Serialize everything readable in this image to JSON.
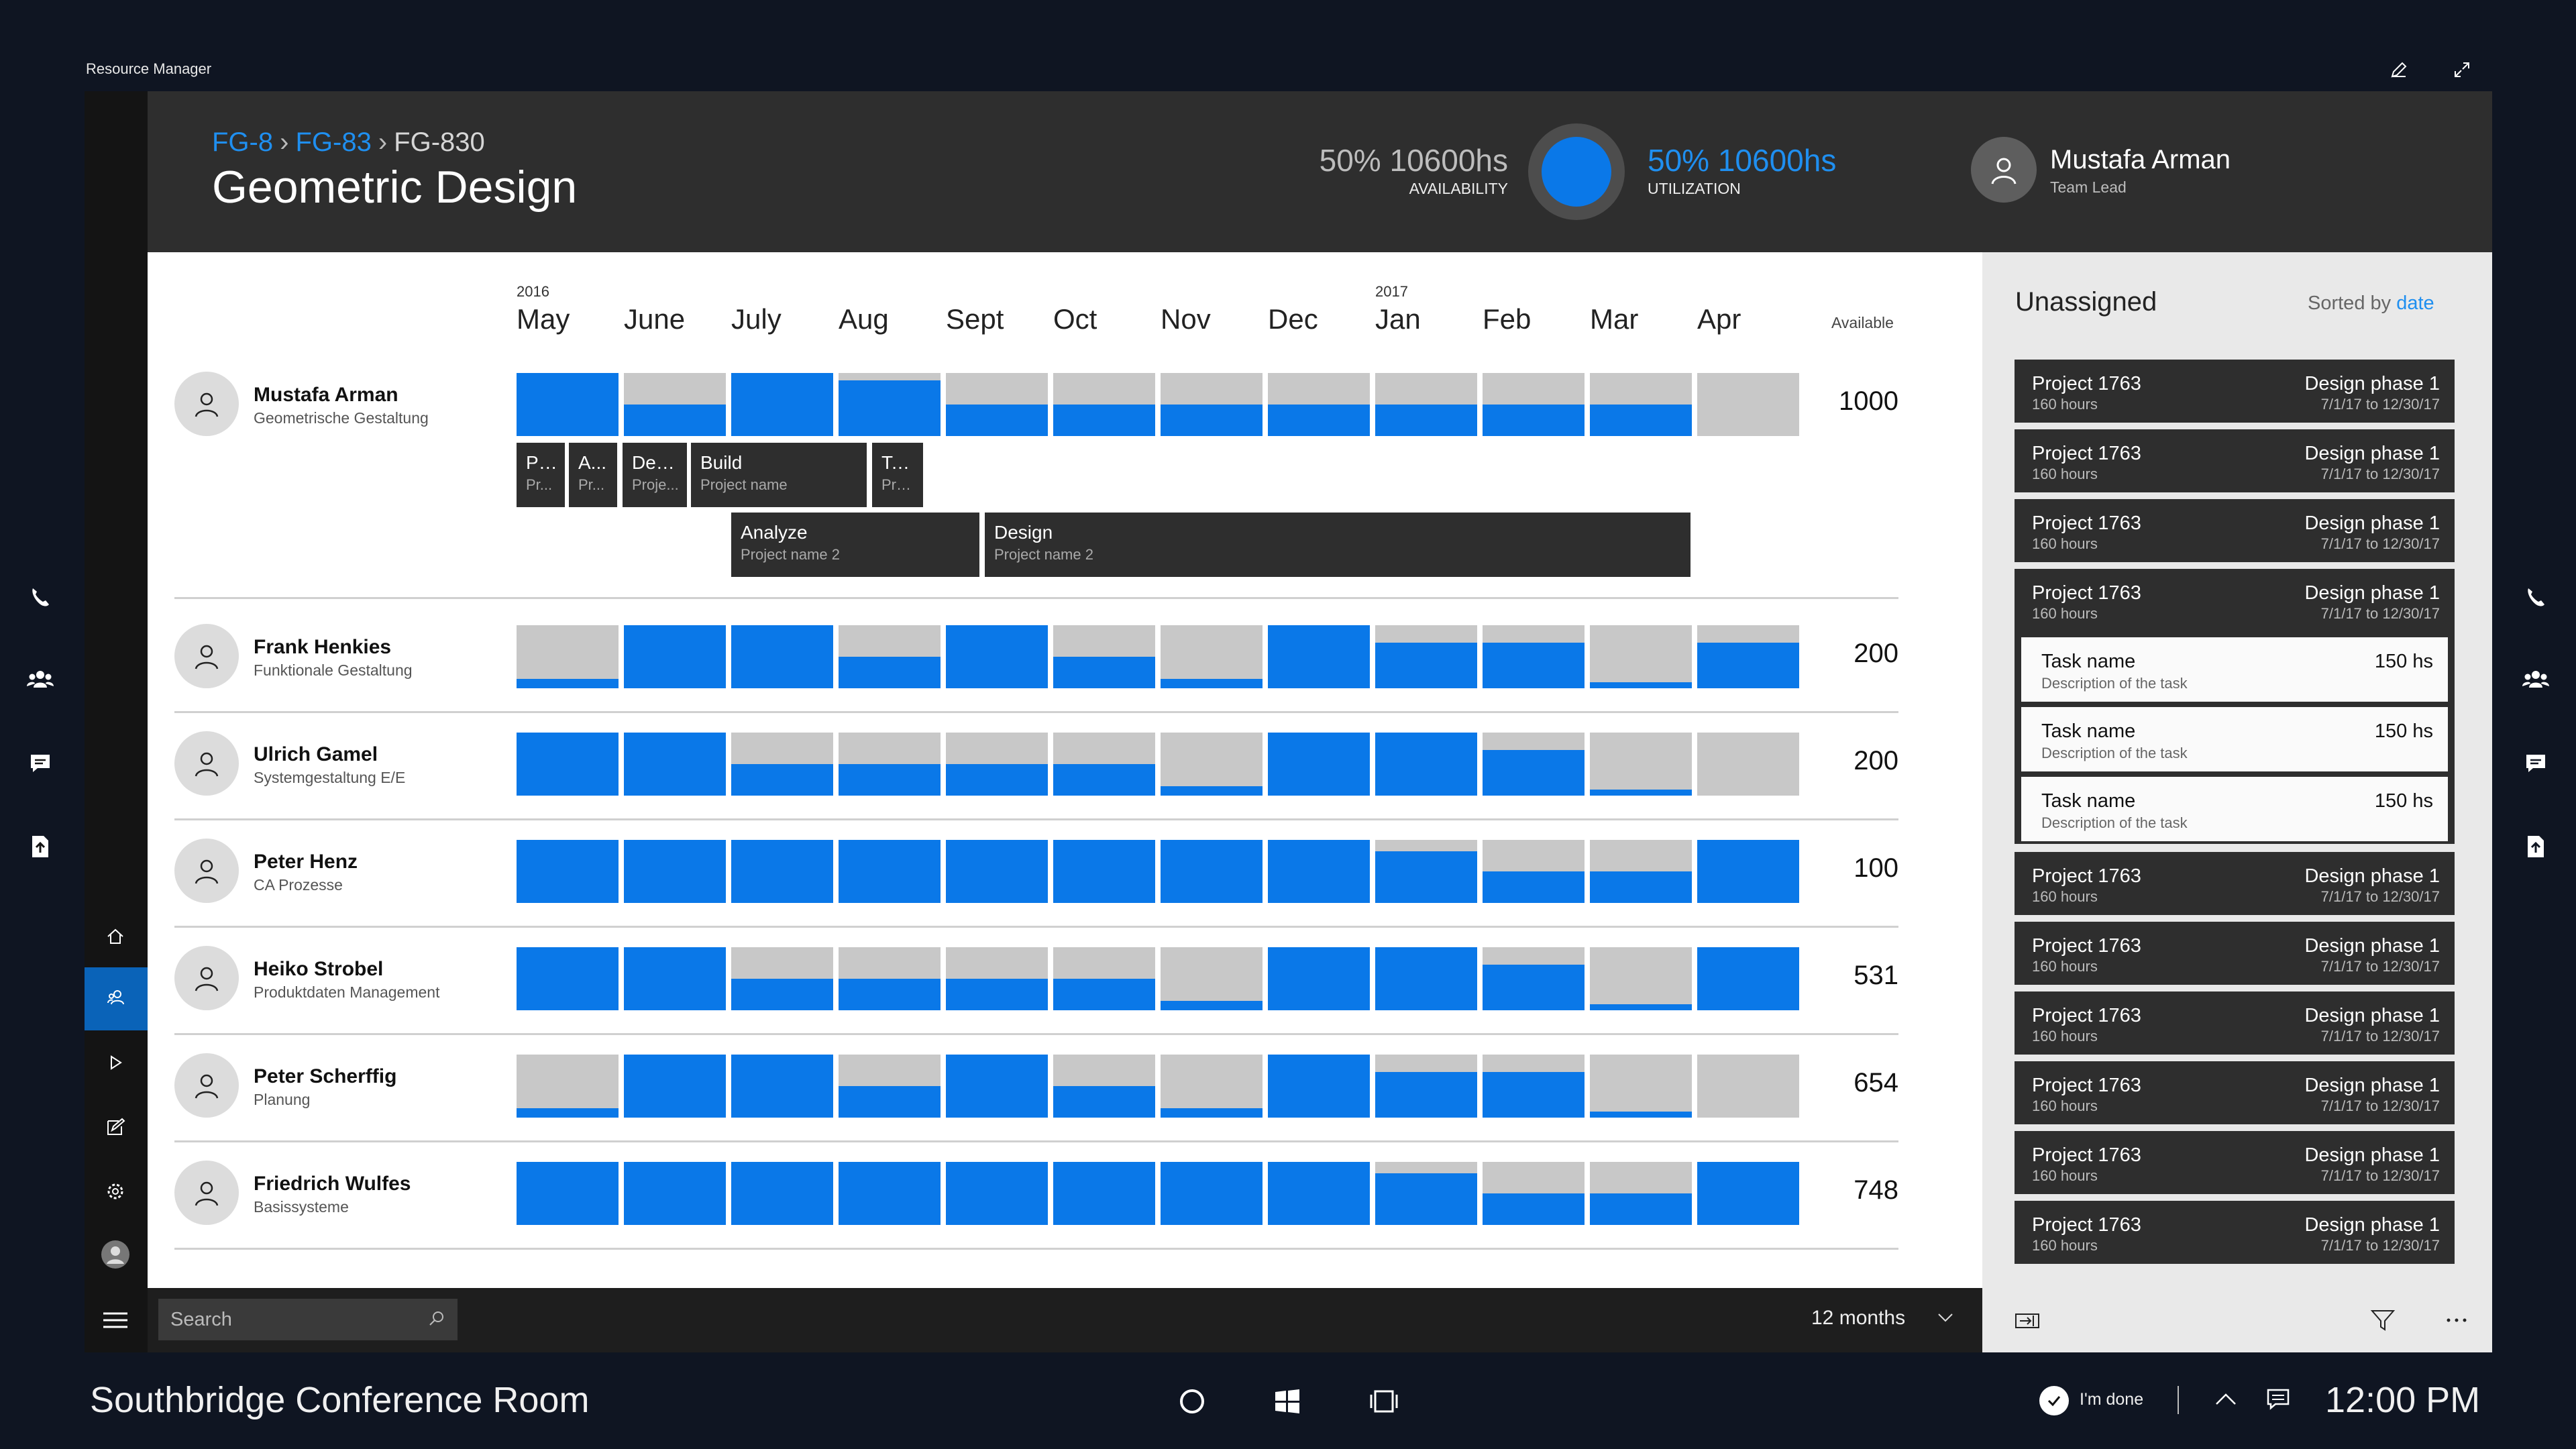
{
  "window": {
    "title": "Resource Manager"
  },
  "breadcrumb": {
    "l1": "FG-8",
    "l2": "FG-83",
    "current": "FG-830",
    "sep": "›"
  },
  "page_title": "Geometric Design",
  "stats": {
    "availability_value": "50% 10600hs",
    "availability_label": "AVAILABILITY",
    "utilization_value": "50% 10600hs",
    "utilization_label": "UTILIZATION"
  },
  "header_user": {
    "name": "Mustafa Arman",
    "role": "Team Lead"
  },
  "timeline": {
    "years": [
      {
        "label": "2016",
        "month_index": 0
      },
      {
        "label": "2017",
        "month_index": 8
      }
    ],
    "months": [
      "May",
      "June",
      "July",
      "Aug",
      "Sept",
      "Oct",
      "Nov",
      "Dec",
      "Jan",
      "Feb",
      "Mar",
      "Apr"
    ],
    "available_label": "Available"
  },
  "people": [
    {
      "name": "Mustafa Arman",
      "role": "Geometrische Gestaltung",
      "available": "1000",
      "fills": [
        1,
        0.5,
        1,
        0.88,
        0.5,
        0.5,
        0.5,
        0.5,
        0.5,
        0.5,
        0.5,
        0
      ]
    },
    {
      "name": "Frank Henkies",
      "role": "Funktionale Gestaltung",
      "available": "200",
      "fills": [
        0.15,
        1,
        1,
        0.5,
        1,
        0.5,
        0.15,
        1,
        0.72,
        0.72,
        0.1,
        0.72
      ]
    },
    {
      "name": "Ulrich Gamel",
      "role": "Systemgestaltung E/E",
      "available": "200",
      "fills": [
        1,
        1,
        0.5,
        0.5,
        0.5,
        0.5,
        0.15,
        1,
        1,
        0.72,
        0.1,
        0
      ]
    },
    {
      "name": "Peter Henz",
      "role": "CA Prozesse",
      "available": "100",
      "fills": [
        1,
        1,
        1,
        1,
        1,
        1,
        1,
        1,
        0.82,
        0.5,
        0.5,
        1
      ]
    },
    {
      "name": "Heiko Strobel",
      "role": "Produktdaten Management",
      "available": "531",
      "fills": [
        1,
        1,
        0.5,
        0.5,
        0.5,
        0.5,
        0.15,
        1,
        1,
        0.72,
        0.1,
        1
      ]
    },
    {
      "name": "Peter Scherffig",
      "role": "Planung",
      "available": "654",
      "fills": [
        0.15,
        1,
        1,
        0.5,
        1,
        0.5,
        0.15,
        1,
        0.72,
        0.72,
        0.1,
        0
      ]
    },
    {
      "name": "Friedrich Wulfes",
      "role": "Basissysteme",
      "available": "748",
      "fills": [
        1,
        1,
        1,
        1,
        1,
        1,
        1,
        1,
        0.82,
        0.5,
        0.5,
        1
      ]
    }
  ],
  "tasks": [
    {
      "name": "Pl...",
      "project": "Pr..."
    },
    {
      "name": "A...",
      "project": "Pr..."
    },
    {
      "name": "Des...",
      "project": "Proje..."
    },
    {
      "name": "Build",
      "project": "Project name"
    },
    {
      "name": "Te...",
      "project": "Pro..."
    },
    {
      "name": "Analyze",
      "project": "Project name 2"
    },
    {
      "name": "Design",
      "project": "Project name 2"
    }
  ],
  "unassigned": {
    "title": "Unassigned",
    "sort_label": "Sorted by",
    "sort_value": "date",
    "cards": [
      {
        "project": "Project 1763",
        "hours": "160 hours",
        "phase": "Design phase 1",
        "dates": "7/1/17 to 12/30/17"
      },
      {
        "project": "Project 1763",
        "hours": "160 hours",
        "phase": "Design phase 1",
        "dates": "7/1/17 to 12/30/17"
      },
      {
        "project": "Project 1763",
        "hours": "160 hours",
        "phase": "Design phase 1",
        "dates": "7/1/17 to 12/30/17"
      },
      {
        "project": "Project 1763",
        "hours": "160 hours",
        "phase": "Design phase 1",
        "dates": "7/1/17 to 12/30/17"
      },
      {
        "project": "Project 1763",
        "hours": "160 hours",
        "phase": "Design phase 1",
        "dates": "7/1/17 to 12/30/17"
      },
      {
        "project": "Project 1763",
        "hours": "160 hours",
        "phase": "Design phase 1",
        "dates": "7/1/17 to 12/30/17"
      },
      {
        "project": "Project 1763",
        "hours": "160 hours",
        "phase": "Design phase 1",
        "dates": "7/1/17 to 12/30/17"
      },
      {
        "project": "Project 1763",
        "hours": "160 hours",
        "phase": "Design phase 1",
        "dates": "7/1/17 to 12/30/17"
      },
      {
        "project": "Project 1763",
        "hours": "160 hours",
        "phase": "Design phase 1",
        "dates": "7/1/17 to 12/30/17"
      },
      {
        "project": "Project 1763",
        "hours": "160 hours",
        "phase": "Design phase 1",
        "dates": "7/1/17 to 12/30/17"
      }
    ],
    "expanded_tasks": [
      {
        "name": "Task name",
        "desc": "Description of the task",
        "hours": "150 hs"
      },
      {
        "name": "Task name",
        "desc": "Description of the task",
        "hours": "150 hs"
      },
      {
        "name": "Task name",
        "desc": "Description of the task",
        "hours": "150 hs"
      }
    ]
  },
  "search": {
    "placeholder": "Search"
  },
  "range": {
    "label": "12 months"
  },
  "taskbar": {
    "room": "Southbridge Conference Room",
    "done_label": "I'm done",
    "clock": "12:00 PM"
  },
  "colors": {
    "accent": "#0a78e8",
    "link": "#1f8ff0",
    "header": "#2e2e2e",
    "unfilled": "#c8c8c8"
  },
  "icons": {
    "left_nav": [
      "home-icon",
      "people-icon",
      "play-icon",
      "edit-icon",
      "gear-icon",
      "user-icon"
    ],
    "side_rail": [
      "phone-icon",
      "group-icon",
      "chat-icon",
      "upload-icon"
    ]
  }
}
